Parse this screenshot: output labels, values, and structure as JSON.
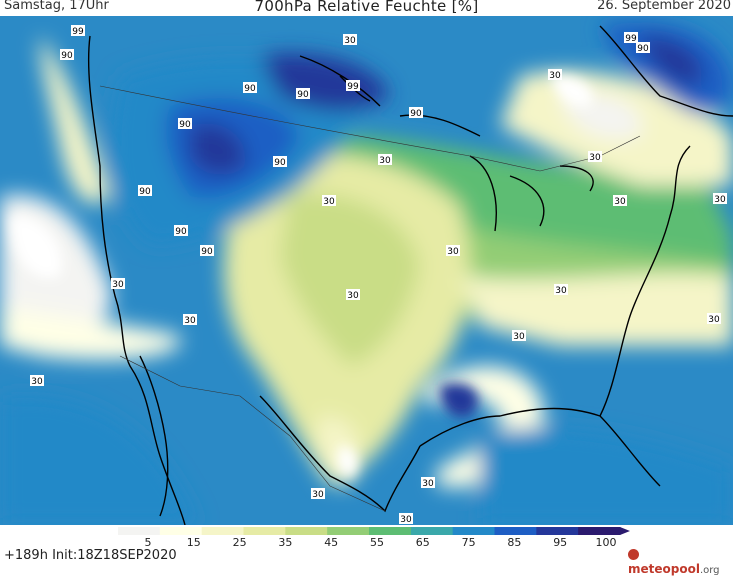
{
  "header": {
    "left": "Samstag, 17Uhr",
    "title": "700hPa Relative Feuchte [%]",
    "right": "26. September 2020"
  },
  "footer": {
    "run_info": "+189h  Init:18Z18SEP2020",
    "brand_name": "meteopool",
    "brand_tld": ".org"
  },
  "legend": {
    "ticks": [
      "5",
      "15",
      "25",
      "35",
      "45",
      "55",
      "65",
      "75",
      "85",
      "95",
      "100"
    ],
    "colors": [
      "#f4f4f2",
      "#ffffe6",
      "#f5f5c8",
      "#e6eba5",
      "#c9dd86",
      "#93cd75",
      "#5dbd73",
      "#3aa8aa",
      "#2389c8",
      "#1e5ec4",
      "#24379a",
      "#2b1a6e"
    ]
  },
  "map": {
    "variable": "relative humidity 700hPa",
    "contour_labels": [
      "99",
      "90",
      "90",
      "99",
      "90",
      "90",
      "90",
      "90",
      "90",
      "90",
      "99",
      "90",
      "90",
      "30",
      "30",
      "30",
      "30",
      "30",
      "30",
      "30",
      "30",
      "30",
      "30",
      "30",
      "30",
      "30",
      "30",
      "30",
      "30",
      "30",
      "30"
    ]
  }
}
